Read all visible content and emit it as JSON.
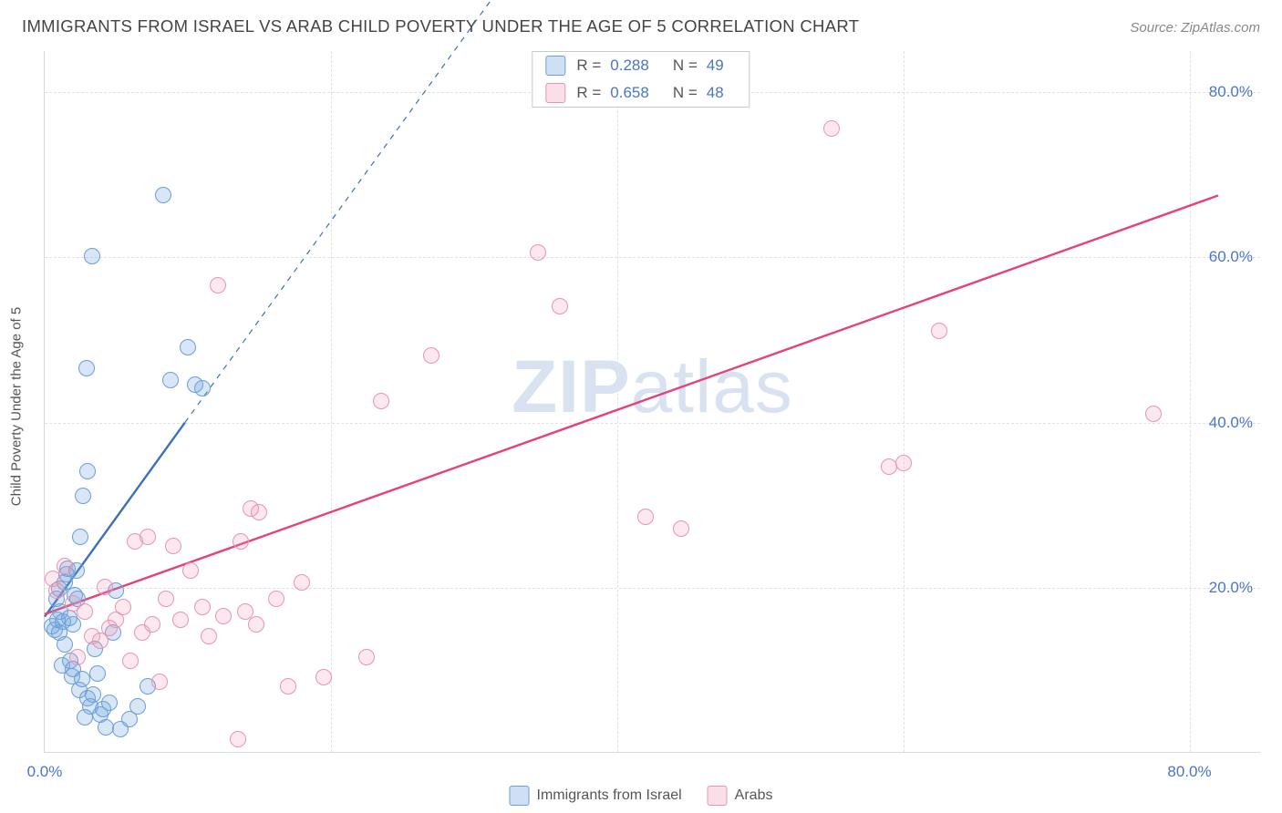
{
  "header": {
    "title": "IMMIGRANTS FROM ISRAEL VS ARAB CHILD POVERTY UNDER THE AGE OF 5 CORRELATION CHART",
    "source_prefix": "Source: ",
    "source_name": "ZipAtlas.com"
  },
  "watermark": {
    "bold": "ZIP",
    "rest": "atlas"
  },
  "chart": {
    "type": "scatter",
    "ylabel": "Child Poverty Under the Age of 5",
    "xlim": [
      0,
      85
    ],
    "ylim": [
      0,
      85
    ],
    "xticks": [
      {
        "v": 0,
        "label": "0.0%"
      },
      {
        "v": 80,
        "label": "80.0%"
      }
    ],
    "yticks": [
      {
        "v": 20,
        "label": "20.0%"
      },
      {
        "v": 40,
        "label": "40.0%"
      },
      {
        "v": 60,
        "label": "60.0%"
      },
      {
        "v": 80,
        "label": "80.0%"
      }
    ],
    "vgrid": [
      20,
      40,
      60,
      80
    ],
    "hgrid": [
      20,
      40,
      60,
      80
    ],
    "background_color": "#ffffff",
    "grid_color": "#e2e2e2",
    "axis_color": "#d9d9d9",
    "tick_color": "#4a76c7",
    "dot_radius": 9,
    "series": [
      {
        "key": "israel",
        "label": "Immigrants from Israel",
        "color_fill": "rgba(119,167,224,0.28)",
        "color_stroke": "#6a9ed8",
        "r": 0.288,
        "n": 49,
        "trend": {
          "x1": 0,
          "y1": 16.5,
          "x2": 9.8,
          "y2": 40,
          "dash_x2": 33,
          "dash_y2": 95.5,
          "stroke_width": 2.4,
          "color": "#3d6fbf"
        },
        "points": [
          [
            0.5,
            15.2
          ],
          [
            0.7,
            14.8
          ],
          [
            0.9,
            16.0
          ],
          [
            1.0,
            14.5
          ],
          [
            1.1,
            17.0
          ],
          [
            1.2,
            10.5
          ],
          [
            1.3,
            15.8
          ],
          [
            1.4,
            13.0
          ],
          [
            1.5,
            21.5
          ],
          [
            1.6,
            22.2
          ],
          [
            1.8,
            11.0
          ],
          [
            1.9,
            9.2
          ],
          [
            2.0,
            15.5
          ],
          [
            2.1,
            19.0
          ],
          [
            2.2,
            22.0
          ],
          [
            2.3,
            18.5
          ],
          [
            2.4,
            7.5
          ],
          [
            2.5,
            26.0
          ],
          [
            2.6,
            8.8
          ],
          [
            2.7,
            31.0
          ],
          [
            2.9,
            46.5
          ],
          [
            3.0,
            34.0
          ],
          [
            3.0,
            6.5
          ],
          [
            3.2,
            5.5
          ],
          [
            3.3,
            60.0
          ],
          [
            3.4,
            7.0
          ],
          [
            3.5,
            12.5
          ],
          [
            3.7,
            9.5
          ],
          [
            3.9,
            4.5
          ],
          [
            4.1,
            5.2
          ],
          [
            4.3,
            3.0
          ],
          [
            4.5,
            6.0
          ],
          [
            4.8,
            14.5
          ],
          [
            5.0,
            19.5
          ],
          [
            5.3,
            2.8
          ],
          [
            5.9,
            4.0
          ],
          [
            6.5,
            5.5
          ],
          [
            7.2,
            8.0
          ],
          [
            8.3,
            67.5
          ],
          [
            8.8,
            45.0
          ],
          [
            10.0,
            49.0
          ],
          [
            10.5,
            44.5
          ],
          [
            11.0,
            44.0
          ],
          [
            0.8,
            18.5
          ],
          [
            1.0,
            19.8
          ],
          [
            1.4,
            20.5
          ],
          [
            1.7,
            16.2
          ],
          [
            2.0,
            10.0
          ],
          [
            2.8,
            4.2
          ]
        ]
      },
      {
        "key": "arabs",
        "label": "Arabs",
        "color_fill": "rgba(240,148,178,0.22)",
        "color_stroke": "#e795b0",
        "r": 0.658,
        "n": 48,
        "trend": {
          "x1": 0,
          "y1": 16.8,
          "x2": 82,
          "y2": 67.5,
          "stroke_width": 2.4,
          "color": "#e5427a"
        },
        "points": [
          [
            0.6,
            21.0
          ],
          [
            0.8,
            19.5
          ],
          [
            1.4,
            22.5
          ],
          [
            2.0,
            18.0
          ],
          [
            2.3,
            11.5
          ],
          [
            2.8,
            17.0
          ],
          [
            3.3,
            14.0
          ],
          [
            3.9,
            13.5
          ],
          [
            4.2,
            20.0
          ],
          [
            4.5,
            15.0
          ],
          [
            5.0,
            16.0
          ],
          [
            5.5,
            17.5
          ],
          [
            6.0,
            11.0
          ],
          [
            6.3,
            25.5
          ],
          [
            6.8,
            14.5
          ],
          [
            7.2,
            26.0
          ],
          [
            7.5,
            15.5
          ],
          [
            8.0,
            8.5
          ],
          [
            8.5,
            18.5
          ],
          [
            9.0,
            25.0
          ],
          [
            9.5,
            16.0
          ],
          [
            10.2,
            22.0
          ],
          [
            11.0,
            17.5
          ],
          [
            11.5,
            14.0
          ],
          [
            12.1,
            56.5
          ],
          [
            12.5,
            16.5
          ],
          [
            13.5,
            1.5
          ],
          [
            13.7,
            25.5
          ],
          [
            14.0,
            17.0
          ],
          [
            14.4,
            29.5
          ],
          [
            14.8,
            15.5
          ],
          [
            15.0,
            29.0
          ],
          [
            16.2,
            18.5
          ],
          [
            17.0,
            8.0
          ],
          [
            18.0,
            20.5
          ],
          [
            19.5,
            9.0
          ],
          [
            22.5,
            11.5
          ],
          [
            23.5,
            42.5
          ],
          [
            27.0,
            48.0
          ],
          [
            34.5,
            60.5
          ],
          [
            36.0,
            54.0
          ],
          [
            42.0,
            28.5
          ],
          [
            44.5,
            27.0
          ],
          [
            55.0,
            75.5
          ],
          [
            59.0,
            34.5
          ],
          [
            60.0,
            35.0
          ],
          [
            62.5,
            51.0
          ],
          [
            77.5,
            41.0
          ]
        ]
      }
    ],
    "legend_top": {
      "r_label": "R =",
      "n_label": "N ="
    }
  }
}
